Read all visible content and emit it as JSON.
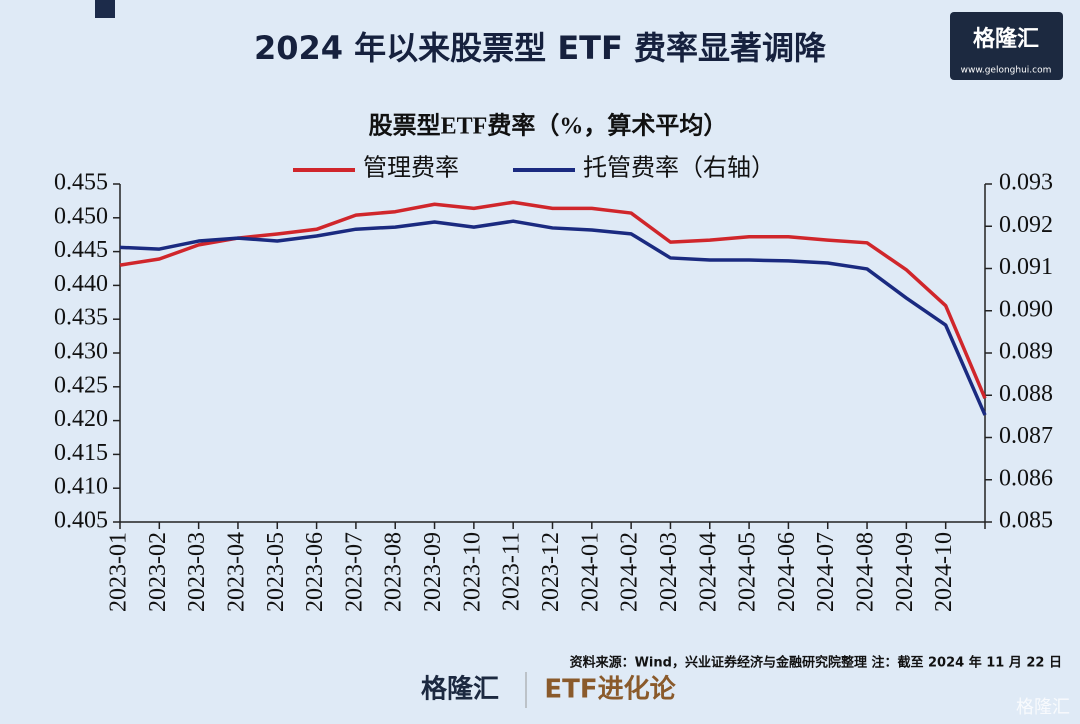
{
  "chart_data": {
    "type": "line",
    "title": "2024 年以来股票型 ETF 费率显著调降",
    "subtitle": "股票型ETF费率（%，算术平均）",
    "categories": [
      "2023-01",
      "2023-02",
      "2023-03",
      "2023-04",
      "2023-05",
      "2023-06",
      "2023-07",
      "2023-08",
      "2023-09",
      "2023-10",
      "2023-11",
      "2023-12",
      "2024-01",
      "2024-02",
      "2024-03",
      "2024-04",
      "2024-05",
      "2024-06",
      "2024-07",
      "2024-08",
      "2024-09",
      "2024-10",
      null
    ],
    "series": [
      {
        "name": "管理费率",
        "color": "#d0262b",
        "axis": "y",
        "values": [
          0.443,
          0.4439,
          0.446,
          0.447,
          0.4476,
          0.4483,
          0.4504,
          0.4509,
          0.452,
          0.4514,
          0.4523,
          0.4514,
          0.4514,
          0.4507,
          0.4464,
          0.4467,
          0.4472,
          0.4472,
          0.4467,
          0.4463,
          0.4423,
          0.437,
          0.4233
        ]
      },
      {
        "name": "托管费率（右轴）",
        "color": "#1a2a80",
        "axis": "y2",
        "values": [
          0.0915,
          0.09146,
          0.09165,
          0.09172,
          0.09165,
          0.09177,
          0.09193,
          0.09198,
          0.0921,
          0.09198,
          0.09212,
          0.09196,
          0.09191,
          0.09182,
          0.09125,
          0.0912,
          0.0912,
          0.09118,
          0.09113,
          0.09099,
          0.0903,
          0.08966,
          0.08753
        ]
      }
    ],
    "ylim": [
      0.405,
      0.455
    ],
    "yticks": [
      0.405,
      {
        "value": 0.41,
        "label": "0.410"
      },
      0.415,
      {
        "value": 0.42,
        "label": "0.420"
      },
      0.425,
      {
        "value": 0.43,
        "label": "0.430"
      },
      0.435,
      {
        "value": 0.44,
        "label": "0.440"
      },
      0.445,
      {
        "value": 0.45,
        "label": "0.450"
      },
      0.455
    ],
    "y2lim": [
      0.085,
      0.093
    ],
    "y2ticks": [
      0.085,
      0.086,
      0.087,
      0.088,
      0.089,
      {
        "value": 0.09,
        "label": "0.090"
      },
      0.091,
      0.092,
      0.093
    ],
    "grid": false,
    "source": "资料来源：Wind，兴业证券经济与金融研究院整理 注：截至 2024 年 11 月 22 日"
  },
  "branding": {
    "logo": "格隆汇",
    "url": "www.gelonghui.com",
    "column": "ETF进化论",
    "watermark": "格隆汇"
  }
}
